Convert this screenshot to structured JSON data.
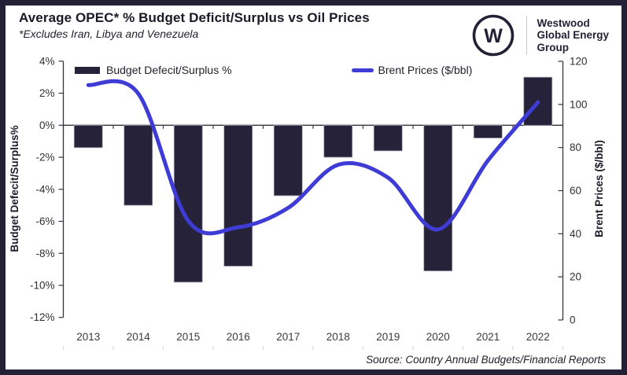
{
  "frame": {
    "border_color": "#242136",
    "card_bg": "#ffffff"
  },
  "header": {
    "title": "Average OPEC* % Budget Deficit/Surplus vs Oil Prices",
    "subtitle": "*Excludes Iran, Libya and Venezuela"
  },
  "logo": {
    "monogram": "W",
    "lines": [
      "Westwood",
      "Global Energy",
      "Group"
    ]
  },
  "source": "Source: Country Annual Budgets/Financial Reports",
  "chart_data": {
    "type": "bar",
    "subtype": "dual-axis bar + smoothed line",
    "categories": [
      "2013",
      "2014",
      "2015",
      "2016",
      "2017",
      "2018",
      "2019",
      "2020",
      "2021",
      "2022"
    ],
    "series": [
      {
        "name": "Budget Defecit/Surplus %",
        "type": "bar",
        "axis": "left",
        "color": "#25223a",
        "values": [
          -1.4,
          -5.0,
          -9.8,
          -8.8,
          -4.4,
          -2.0,
          -1.6,
          -9.1,
          -0.8,
          3.0
        ]
      },
      {
        "name": "Brent Prices ($/bbl)",
        "type": "line",
        "axis": "right",
        "color": "#3f3cd6",
        "values": [
          109,
          105,
          46,
          43,
          52,
          72,
          66,
          42,
          74,
          101
        ]
      }
    ],
    "left_axis": {
      "title": "Budget Defecit/Surplus%",
      "min": -12,
      "max": 4,
      "step": 2,
      "tick_suffix": "%"
    },
    "right_axis": {
      "title": "Brent Prices ($/bbl)",
      "min": 0,
      "max": 120,
      "step": 20
    },
    "legend_position": "top",
    "grid": false,
    "zero_line": true
  }
}
